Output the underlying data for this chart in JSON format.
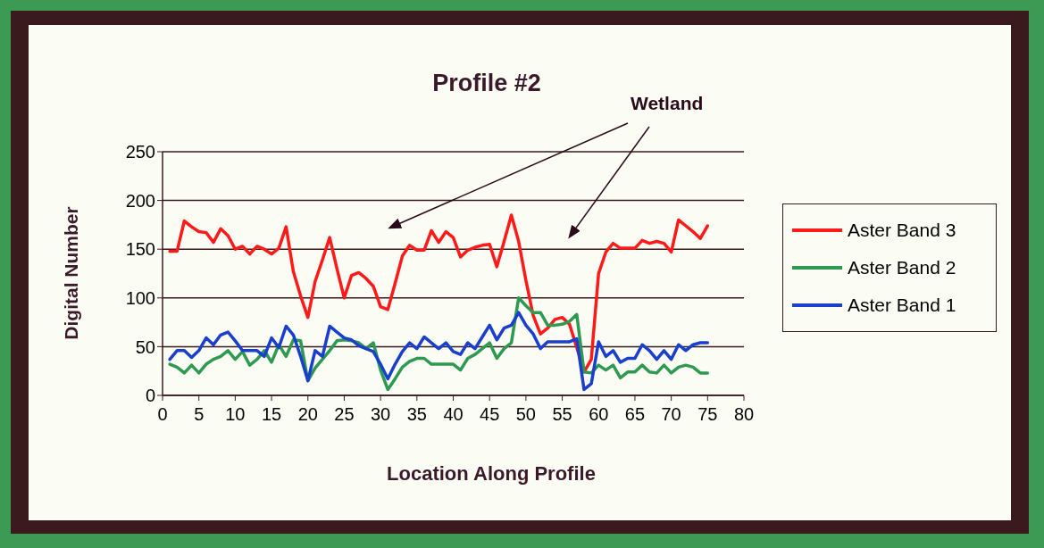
{
  "chart_data": {
    "type": "line",
    "title": "Profile #2",
    "xlabel": "Location Along Profile",
    "ylabel": "Digital Number",
    "annotations": [
      "Wetland"
    ],
    "x": [
      1,
      2,
      3,
      4,
      5,
      6,
      7,
      8,
      9,
      10,
      11,
      12,
      13,
      14,
      15,
      16,
      17,
      18,
      19,
      20,
      21,
      22,
      23,
      24,
      25,
      26,
      27,
      28,
      29,
      30,
      31,
      32,
      33,
      34,
      35,
      36,
      37,
      38,
      39,
      40,
      41,
      42,
      43,
      44,
      45,
      46,
      47,
      48,
      49,
      50,
      51,
      52,
      53,
      54,
      55,
      56,
      57,
      58,
      59,
      60,
      61,
      62,
      63,
      64,
      65,
      66,
      67,
      68,
      69,
      70,
      71,
      72,
      73,
      74,
      75
    ],
    "series": [
      {
        "name": "Aster Band 3",
        "color": "#ff1a1a",
        "values": [
          148,
          148,
          179,
          173,
          168,
          167,
          157,
          171,
          164,
          150,
          153,
          145,
          153,
          150,
          145,
          151,
          173,
          127,
          102,
          80,
          117,
          139,
          162,
          130,
          100,
          123,
          126,
          120,
          112,
          91,
          88,
          115,
          143,
          154,
          149,
          149,
          169,
          157,
          168,
          162,
          142,
          149,
          152,
          154,
          155,
          132,
          158,
          185,
          158,
          118,
          82,
          63,
          69,
          78,
          80,
          73,
          49,
          24,
          37,
          125,
          147,
          156,
          151,
          151,
          151,
          159,
          156,
          158,
          156,
          147,
          180,
          174,
          168,
          161,
          174
        ]
      },
      {
        "name": "Aster Band 2",
        "color": "#2e9950",
        "values": [
          32,
          29,
          23,
          31,
          23,
          32,
          37,
          40,
          46,
          37,
          45,
          31,
          37,
          46,
          34,
          52,
          40,
          57,
          56,
          15,
          28,
          37,
          46,
          56,
          57,
          56,
          54,
          48,
          54,
          26,
          6,
          17,
          29,
          35,
          38,
          38,
          32,
          32,
          32,
          32,
          26,
          38,
          42,
          48,
          54,
          38,
          48,
          54,
          100,
          92,
          85,
          85,
          72,
          72,
          73,
          76,
          83,
          24,
          23,
          31,
          26,
          31,
          18,
          24,
          24,
          31,
          24,
          23,
          31,
          23,
          29,
          31,
          29,
          23,
          23
        ]
      },
      {
        "name": "Aster Band 1",
        "color": "#1a3fcc",
        "values": [
          37,
          46,
          46,
          39,
          46,
          59,
          52,
          62,
          65,
          56,
          46,
          46,
          46,
          40,
          59,
          49,
          71,
          62,
          40,
          15,
          46,
          40,
          71,
          65,
          59,
          57,
          51,
          48,
          45,
          32,
          17,
          32,
          45,
          54,
          48,
          60,
          54,
          48,
          54,
          45,
          42,
          54,
          48,
          60,
          72,
          57,
          69,
          72,
          85,
          72,
          63,
          48,
          55,
          55,
          55,
          55,
          58,
          6,
          12,
          55,
          40,
          46,
          34,
          38,
          38,
          52,
          46,
          37,
          46,
          37,
          52,
          46,
          52,
          54,
          54
        ]
      }
    ],
    "xlim": [
      0,
      80
    ],
    "xticks": [
      0,
      5,
      10,
      15,
      20,
      25,
      30,
      35,
      40,
      45,
      50,
      55,
      60,
      65,
      70,
      75,
      80
    ],
    "ylim": [
      0,
      250
    ],
    "yticks": [
      0,
      50,
      100,
      150,
      200,
      250
    ],
    "grid": "y",
    "legend": "right",
    "marker": "none",
    "line_style": "solid"
  }
}
